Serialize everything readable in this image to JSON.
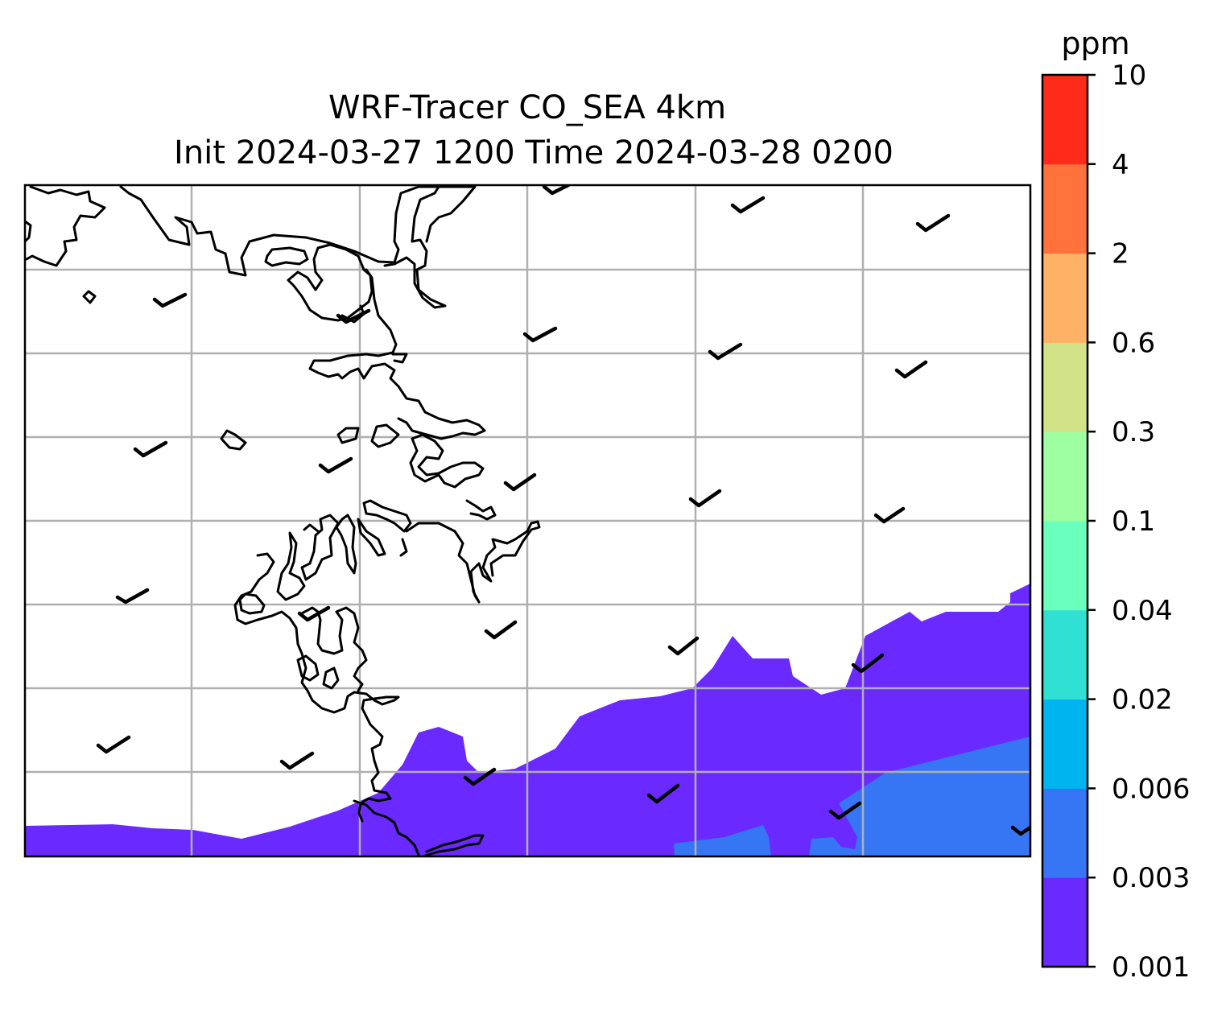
{
  "title": {
    "line1": "WRF-Tracer CO_SEA 4km",
    "line2": "Init 2024-03-27 1200 Time 2024-03-28 0200"
  },
  "colorbar": {
    "unit": "ppm",
    "levels": [
      "0.001",
      "0.003",
      "0.006",
      "0.02",
      "0.04",
      "0.1",
      "0.3",
      "0.6",
      "2",
      "4",
      "10"
    ],
    "colors": [
      "#6a29ff",
      "#3676f4",
      "#00b5ef",
      "#2fe0d3",
      "#6affbd",
      "#9dffa1",
      "#d1e287",
      "#ffb265",
      "#ff723c",
      "#ff2b1a"
    ]
  },
  "map": {
    "gridlines": true,
    "gridline_color": "#b0b0b0",
    "coastline_color": "#000000",
    "filled_levels_present": [
      "0.001",
      "0.003"
    ],
    "wind_barbs": "calm / light-wind barbs on a regular grid"
  }
}
